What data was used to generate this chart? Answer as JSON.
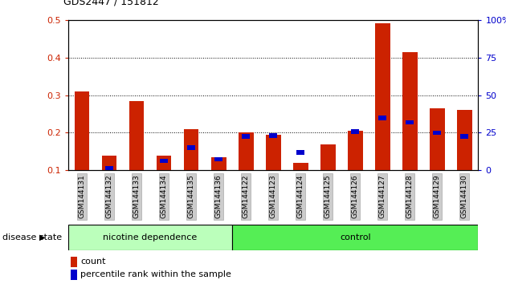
{
  "title": "GDS2447 / 151812",
  "samples": [
    "GSM144131",
    "GSM144132",
    "GSM144133",
    "GSM144134",
    "GSM144135",
    "GSM144136",
    "GSM144122",
    "GSM144123",
    "GSM144124",
    "GSM144125",
    "GSM144126",
    "GSM144127",
    "GSM144128",
    "GSM144129",
    "GSM144130"
  ],
  "count_values": [
    0.31,
    0.14,
    0.285,
    0.14,
    0.21,
    0.135,
    0.2,
    0.195,
    0.12,
    0.17,
    0.205,
    0.49,
    0.415,
    0.265,
    0.26
  ],
  "percentile_values": [
    null,
    0.105,
    null,
    0.125,
    0.16,
    0.13,
    0.19,
    0.193,
    0.148,
    null,
    0.203,
    0.24,
    0.228,
    0.2,
    0.19
  ],
  "nicotine_count": 6,
  "control_count": 9,
  "nicotine_label": "nicotine dependence",
  "control_label": "control",
  "disease_state_label": "disease state",
  "left_yticks": [
    0.1,
    0.2,
    0.3,
    0.4,
    0.5
  ],
  "left_ytick_labels": [
    "0.1",
    "0.2",
    "0.3",
    "0.4",
    "0.5"
  ],
  "right_yticks": [
    0,
    25,
    50,
    75,
    100
  ],
  "right_ytick_labels": [
    "0",
    "25",
    "50",
    "75",
    "100%"
  ],
  "ylim": [
    0.1,
    0.5
  ],
  "bar_color": "#cc2200",
  "blue_color": "#0000cc",
  "nicotine_bg": "#bbffbb",
  "control_bg": "#55ee55",
  "sample_label_bg": "#cccccc",
  "legend_count_label": "count",
  "legend_pct_label": "percentile rank within the sample",
  "bar_width": 0.55,
  "blue_bar_width": 0.3,
  "blue_bar_height": 0.012
}
